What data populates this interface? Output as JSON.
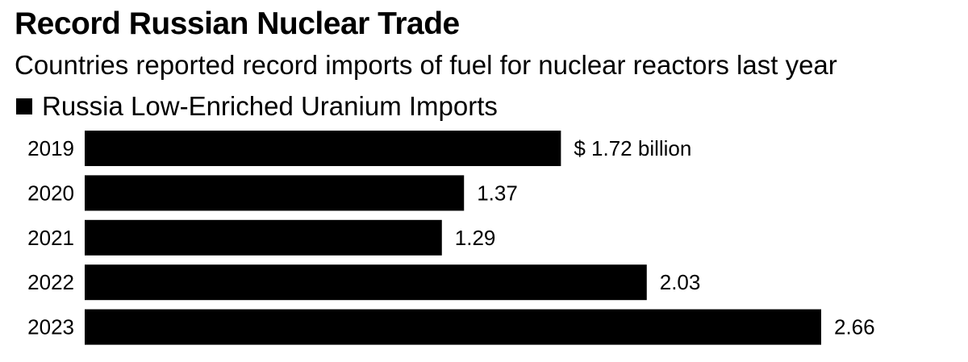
{
  "header": {
    "title": "Record Russian Nuclear Trade",
    "subtitle": "Countries reported record imports of fuel for nuclear reactors last year"
  },
  "colors": {
    "bar": "#000000",
    "background": "#ffffff"
  },
  "chart_data": {
    "type": "bar",
    "orientation": "horizontal",
    "title": "Record Russian Nuclear Trade",
    "subtitle": "Countries reported record imports of fuel for nuclear reactors last year",
    "categories": [
      "2019",
      "2020",
      "2021",
      "2022",
      "2023"
    ],
    "series": [
      {
        "name": "Russia Low-Enriched Uranium Imports",
        "values": [
          1.72,
          1.37,
          1.29,
          2.03,
          2.66
        ]
      }
    ],
    "value_labels": [
      "$ 1.72 billion",
      "1.37",
      "1.29",
      "2.03",
      "2.66"
    ],
    "unit": "$ billion",
    "xlim": [
      0,
      2.66
    ],
    "grid": false,
    "legend_position": "top-left"
  }
}
